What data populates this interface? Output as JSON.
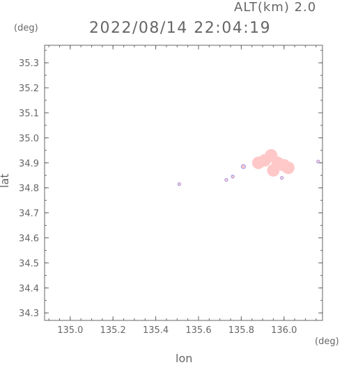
{
  "header": {
    "altitude_label": "ALT(km) 2.0",
    "timestamp": "2022/08/14 22:04:19"
  },
  "chart_data": {
    "type": "scatter",
    "xlabel": "lon",
    "ylabel": "lat",
    "x_unit": "(deg)",
    "y_unit": "(deg)",
    "xlim": [
      134.88,
      136.18
    ],
    "ylim": [
      34.27,
      35.37
    ],
    "x_ticks": [
      "135.0",
      "135.2",
      "135.4",
      "135.6",
      "135.8",
      "136.0"
    ],
    "y_ticks": [
      "34.3",
      "34.4",
      "34.5",
      "34.6",
      "34.7",
      "34.8",
      "34.9",
      "35.0",
      "35.1",
      "35.2",
      "35.3"
    ],
    "grid": false,
    "colors": {
      "echo": "#ffc8c8",
      "echo_edge": "#8888ee",
      "axis": "#666666"
    },
    "series": [
      {
        "points": [
          {
            "lon": 135.51,
            "lat": 34.815
          },
          {
            "lon": 135.73,
            "lat": 34.832
          },
          {
            "lon": 135.76,
            "lat": 34.845
          },
          {
            "lon": 135.81,
            "lat": 34.885
          },
          {
            "lon": 135.88,
            "lat": 34.9
          },
          {
            "lon": 135.91,
            "lat": 34.91
          },
          {
            "lon": 135.94,
            "lat": 34.93
          },
          {
            "lon": 135.97,
            "lat": 34.9
          },
          {
            "lon": 136.0,
            "lat": 34.89
          },
          {
            "lon": 136.02,
            "lat": 34.88
          },
          {
            "lon": 135.95,
            "lat": 34.87
          },
          {
            "lon": 135.99,
            "lat": 34.84
          },
          {
            "lon": 136.16,
            "lat": 34.905
          }
        ]
      }
    ]
  }
}
